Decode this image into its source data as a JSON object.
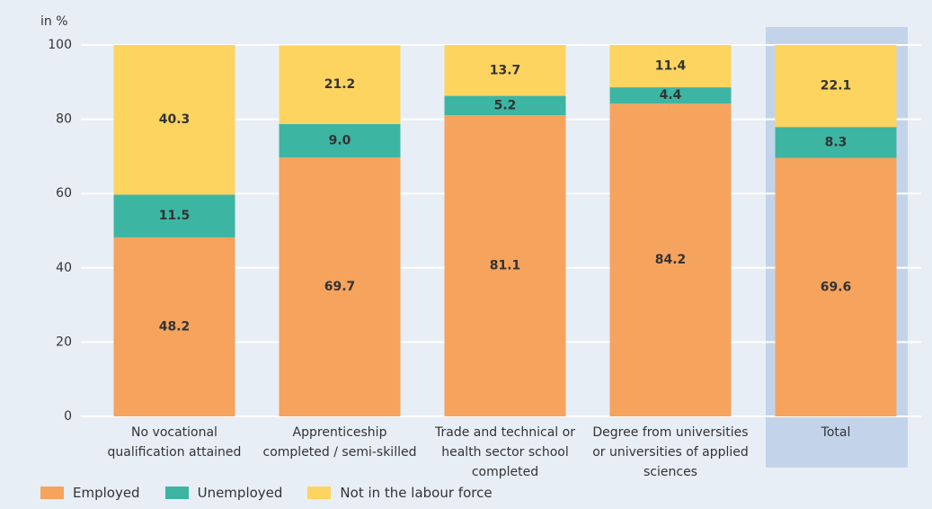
{
  "chart_data": {
    "type": "stacked_bar",
    "ylabel": "in %",
    "categories": [
      "No vocational qualification attained",
      "Apprenticeship completed / semi-skilled",
      "Trade and technical or health sector school completed",
      "Degree from universities or universities of applied sciences",
      "Total"
    ],
    "series": [
      {
        "name": "Employed",
        "color": "#f6a35e",
        "values": [
          48.2,
          69.7,
          81.1,
          84.2,
          69.6
        ],
        "value_labels": [
          "48.2",
          "69.7",
          "81.1",
          "84.2",
          "69.6"
        ]
      },
      {
        "name": "Unemployed",
        "color": "#3db5a3",
        "values": [
          11.5,
          9.0,
          5.2,
          4.4,
          8.3
        ],
        "value_labels": [
          "11.5",
          "9.0",
          "5.2",
          "4.4",
          "8.3"
        ]
      },
      {
        "name": "Not in the labour force",
        "color": "#fdd45f",
        "values": [
          40.3,
          21.2,
          13.7,
          11.4,
          22.1
        ],
        "value_labels": [
          "40.3",
          "21.2",
          "13.7",
          "11.4",
          "22.1"
        ]
      }
    ],
    "ylim": [
      0,
      100
    ],
    "yticks": [
      0,
      20,
      40,
      60,
      80,
      100
    ],
    "grid": true,
    "legend": "bottom"
  }
}
